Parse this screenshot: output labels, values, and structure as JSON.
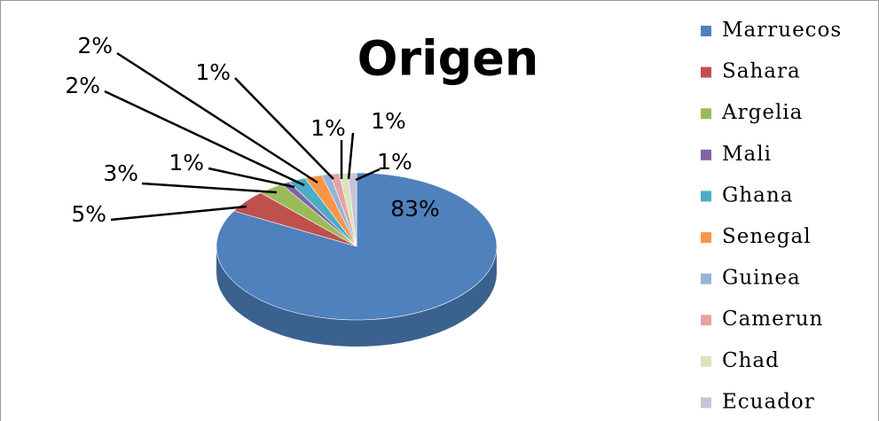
{
  "chart_data": {
    "type": "pie3d",
    "title": "Origen",
    "categories": [
      "Marruecos",
      "Sahara",
      "Argelia",
      "Mali",
      "Ghana",
      "Senegal",
      "Guinea",
      "Camerun",
      "Chad",
      "Ecuador"
    ],
    "values": [
      83,
      5,
      3,
      1,
      2,
      2,
      1,
      1,
      1,
      1
    ],
    "value_labels": [
      "83%",
      "5%",
      "3%",
      "1%",
      "2%",
      "2%",
      "1%",
      "1%",
      "1%",
      "1%"
    ],
    "colors": [
      "#4f81bd",
      "#c0504d",
      "#9bbb59",
      "#8064a2",
      "#4bacc6",
      "#f79646",
      "#95b3d7",
      "#e6a3a2",
      "#d7e4bd",
      "#ccc1da"
    ],
    "legend": "right"
  }
}
